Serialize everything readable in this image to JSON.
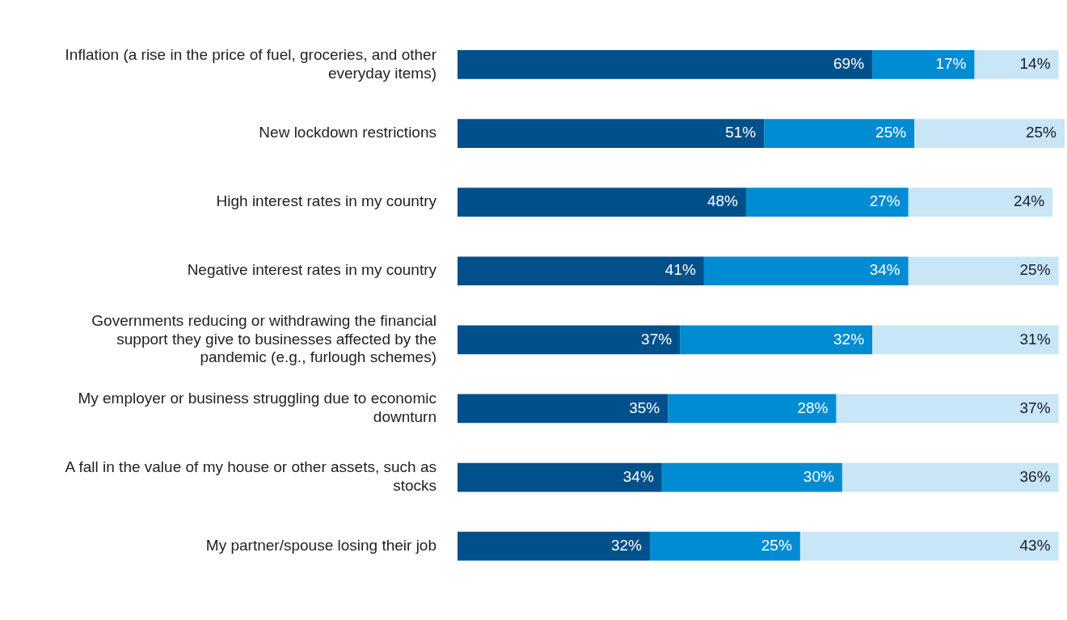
{
  "chart_data": {
    "type": "bar",
    "orientation": "horizontal",
    "stacked": true,
    "legend": false,
    "grid": false,
    "tick_labels": "y",
    "categories": [
      "Inflation (a rise in the price of fuel, groceries, and other everyday items)",
      "New lockdown restrictions",
      "High interest rates in my country",
      "Negative interest rates in my country",
      "Governments reducing or withdrawing the financial support they give to businesses affected by the pandemic (e.g., furlough schemes)",
      "My employer or business struggling due to economic downturn",
      "A fall in the value of my house or other assets, such as stocks",
      "My partner/spouse losing their job"
    ],
    "series": [
      {
        "color": "#00508c",
        "values": [
          69,
          51,
          48,
          41,
          37,
          35,
          34,
          32
        ],
        "value_labels": [
          "69%",
          "51%",
          "48%",
          "41%",
          "37%",
          "35%",
          "34%",
          "32%"
        ]
      },
      {
        "color": "#008cd2",
        "values": [
          17,
          25,
          27,
          34,
          32,
          28,
          30,
          25
        ],
        "value_labels": [
          "17%",
          "25%",
          "27%",
          "34%",
          "32%",
          "28%",
          "30%",
          "25%"
        ]
      },
      {
        "color": "#c8e6f5",
        "values": [
          14,
          25,
          24,
          25,
          31,
          37,
          36,
          43
        ],
        "value_labels": [
          "14%",
          "25%",
          "24%",
          "25%",
          "31%",
          "37%",
          "36%",
          "43%"
        ]
      }
    ]
  }
}
